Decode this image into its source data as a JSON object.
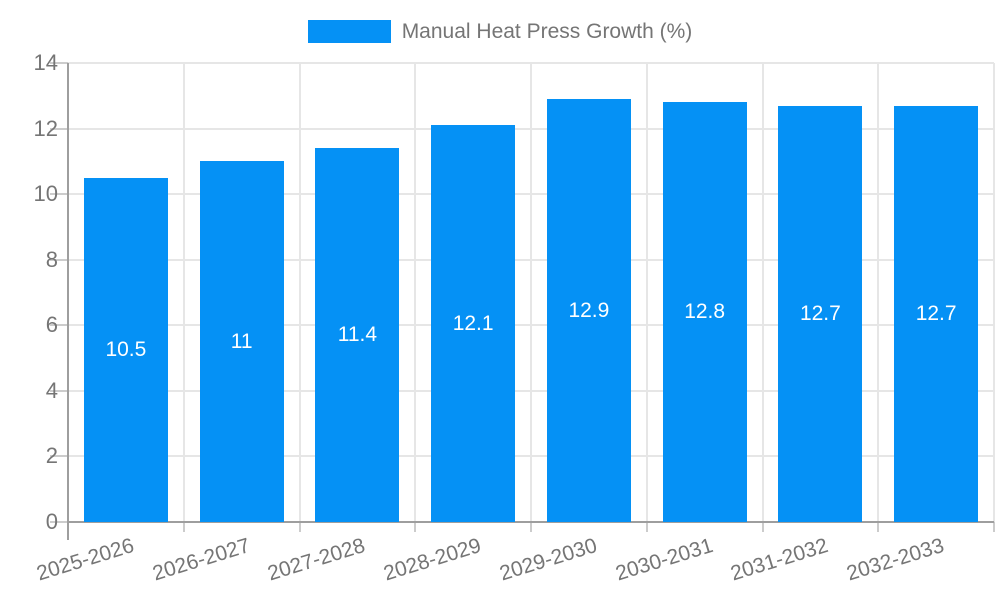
{
  "chart_data": {
    "type": "bar",
    "title": "",
    "legend": {
      "label": "Manual Heat Press Growth (%)",
      "position": "top"
    },
    "categories": [
      "2025-2026",
      "2026-2027",
      "2027-2028",
      "2028-2029",
      "2029-2030",
      "2030-2031",
      "2031-2032",
      "2032-2033"
    ],
    "values": [
      10.5,
      11,
      11.4,
      12.1,
      12.9,
      12.8,
      12.7,
      12.7
    ],
    "value_labels": [
      "10.5",
      "11",
      "11.4",
      "12.1",
      "12.9",
      "12.8",
      "12.7",
      "12.7"
    ],
    "xlabel": "",
    "ylabel": "",
    "ylim": [
      0,
      14
    ],
    "yticks": [
      0,
      2,
      4,
      6,
      8,
      10,
      12,
      14
    ],
    "grid": true,
    "colors": {
      "bar": "#0591f5",
      "grid": "#e6e6e6",
      "axis": "#9e9e9e",
      "tick": "#cccccc",
      "text": "#757575",
      "value_label": "#ffffff",
      "background": "#ffffff"
    }
  }
}
